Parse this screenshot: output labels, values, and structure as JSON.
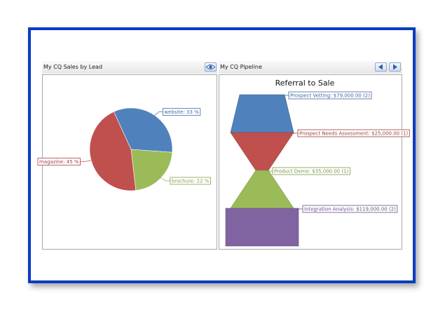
{
  "panels": {
    "left": {
      "title": "My CQ Sales by Lead",
      "button_icon": "eye-icon"
    },
    "right": {
      "title": "My CQ Pipeline",
      "prev_icon": "arrow-left-icon",
      "next_icon": "arrow-right-icon"
    }
  },
  "chart_data": [
    {
      "type": "pie",
      "title": "",
      "slices": [
        {
          "name": "website",
          "value": 33,
          "label": "website: 33 %",
          "color": "#4f81bd"
        },
        {
          "name": "brochure",
          "value": 22,
          "label": "brochure: 22 %",
          "color": "#9bbb59"
        },
        {
          "name": "magazine",
          "value": 45,
          "label": "magazine: 45 %",
          "color": "#c0504d"
        }
      ]
    },
    {
      "type": "funnel",
      "title": "Referral to Sale",
      "stages": [
        {
          "name": "Prospect Vetting",
          "value": 79000,
          "count": 2,
          "label": "Prospect Vetting: $79,000.00 (2)",
          "color": "#4f81bd"
        },
        {
          "name": "Prospect Needs Assessment",
          "value": 25000,
          "count": 1,
          "label": "Prospect Needs Assessment: $25,000.00 (1)",
          "color": "#c0504d"
        },
        {
          "name": "Product Demo",
          "value": 35000,
          "count": 1,
          "label": "Product Demo: $35,000.00 (1)",
          "color": "#9bbb59"
        },
        {
          "name": "Integration Analysis",
          "value": 119000,
          "count": 2,
          "label": "Integration Analysis: $119,000.00 (2)",
          "color": "#8064a2"
        }
      ]
    }
  ]
}
